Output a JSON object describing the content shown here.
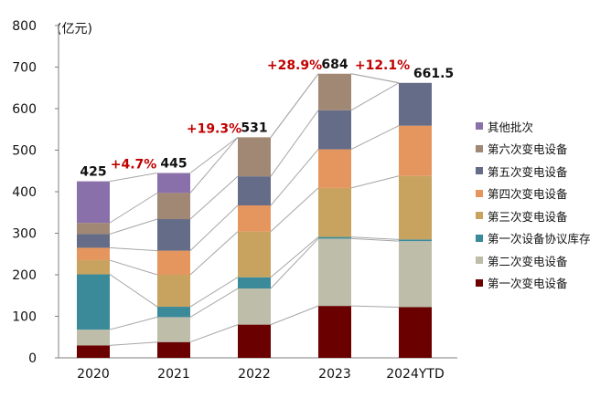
{
  "chart_data": {
    "type": "bar",
    "stacked": true,
    "unit_label": "(亿元)",
    "categories": [
      "2020",
      "2021",
      "2022",
      "2023",
      "2024YTD"
    ],
    "ylim": [
      0,
      800
    ],
    "yticks": [
      0,
      100,
      200,
      300,
      400,
      500,
      600,
      700,
      800
    ],
    "grid": false,
    "legend_position": "right",
    "series": [
      {
        "name": "第一次变电设备",
        "color": "#6b0000",
        "values": [
          30,
          38,
          80,
          125,
          122
        ]
      },
      {
        "name": "第二次变电设备",
        "color": "#bdbdaa",
        "values": [
          38,
          60,
          87,
          162,
          159
        ]
      },
      {
        "name": "第一次设备协议库存",
        "color": "#3a8a9a",
        "values": [
          133,
          25,
          27,
          4,
          4
        ]
      },
      {
        "name": "第三次变电设备",
        "color": "#c7a35f",
        "values": [
          34,
          77,
          110,
          118,
          153
        ]
      },
      {
        "name": "第四次变电设备",
        "color": "#e4965e",
        "values": [
          30,
          58,
          63,
          93,
          121
        ]
      },
      {
        "name": "第五次变电设备",
        "color": "#646c88",
        "values": [
          33,
          76,
          70,
          94,
          103
        ]
      },
      {
        "name": "第六次变电设备",
        "color": "#a08874",
        "values": [
          27,
          63,
          94,
          88,
          0
        ]
      },
      {
        "name": "其他批次",
        "color": "#8a70aa",
        "values": [
          100,
          48,
          0,
          0,
          0
        ]
      }
    ],
    "totals": [
      "425",
      "445",
      "531",
      "684",
      "661.5"
    ],
    "growth_labels": [
      {
        "from": 0,
        "to": 1,
        "text": "+4.7%"
      },
      {
        "from": 1,
        "to": 2,
        "text": "+19.3%"
      },
      {
        "from": 2,
        "to": 3,
        "text": "+28.9%"
      },
      {
        "from": 3,
        "to": 4,
        "text": "+12.1%"
      }
    ],
    "colors": {
      "growth_text": "#c00000",
      "connector": "#a6a6a6",
      "axis": "#7f7f7f",
      "text": "#111111"
    }
  }
}
